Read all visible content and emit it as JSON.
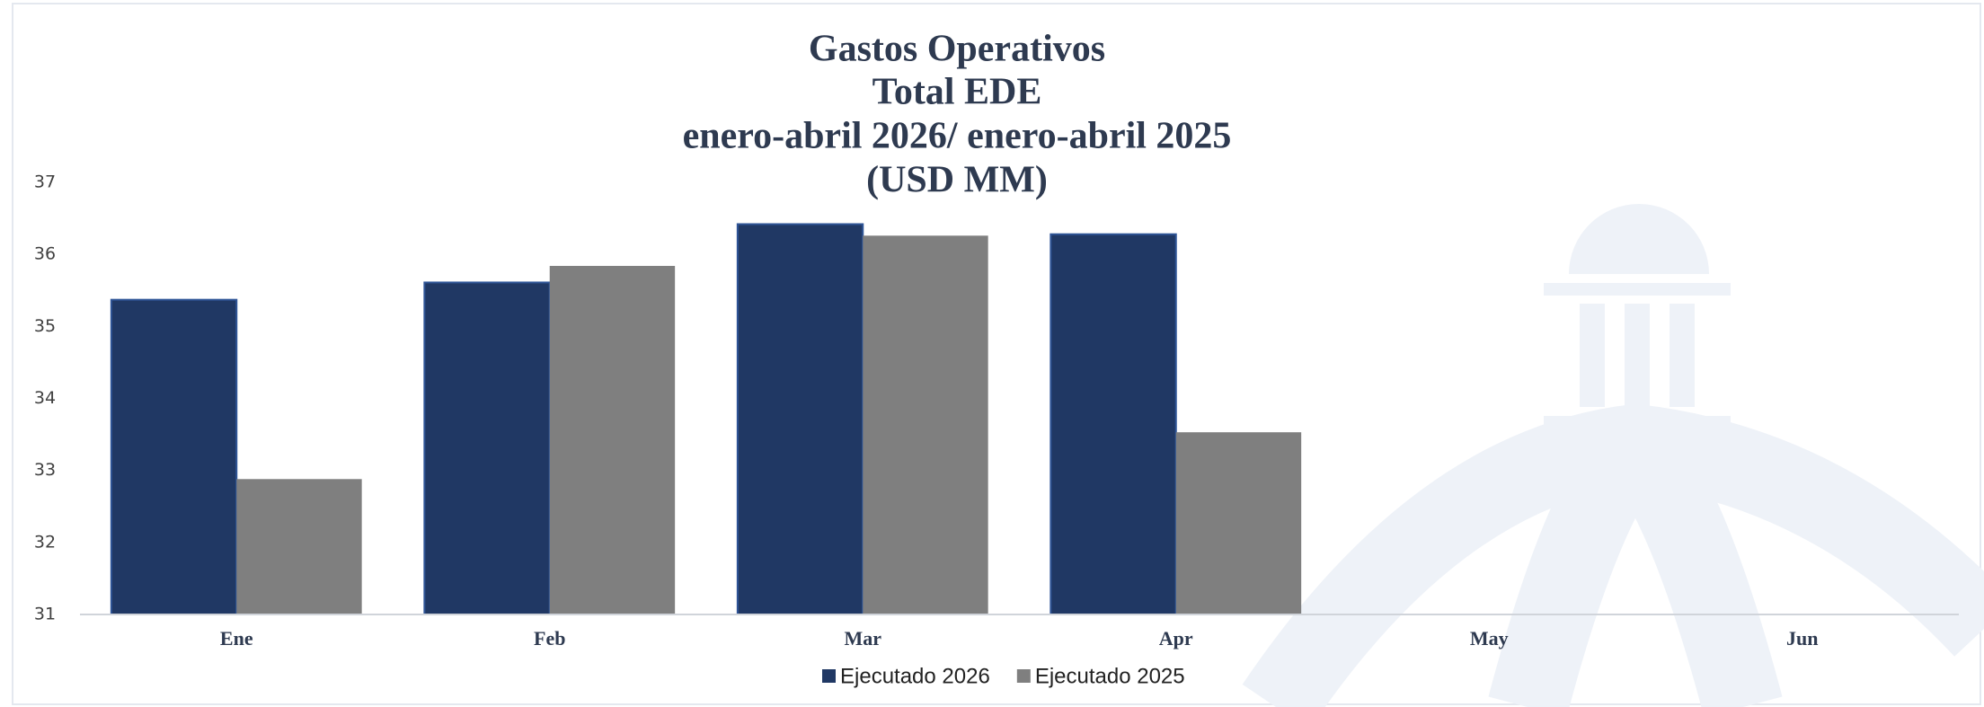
{
  "chart_data": {
    "type": "bar",
    "title": [
      "Gastos Operativos",
      "Total EDE",
      "enero-abril 2026/ enero-abril 2025",
      "(USD MM)"
    ],
    "categories": [
      "Ene",
      "Feb",
      "Mar",
      "Apr",
      "May",
      "Jun"
    ],
    "series": [
      {
        "name": "Ejecutado 2026",
        "color": "#203864",
        "values": [
          35.37,
          35.61,
          36.42,
          36.28,
          null,
          null
        ]
      },
      {
        "name": "Ejecutado 2025",
        "color": "#7f7f7f",
        "values": [
          32.88,
          35.84,
          36.26,
          33.53,
          null,
          null
        ]
      }
    ],
    "ylim": [
      31,
      37
    ],
    "yticks": [
      31,
      32,
      33,
      34,
      35,
      36,
      37
    ],
    "grid": false,
    "legend": "bottom"
  }
}
